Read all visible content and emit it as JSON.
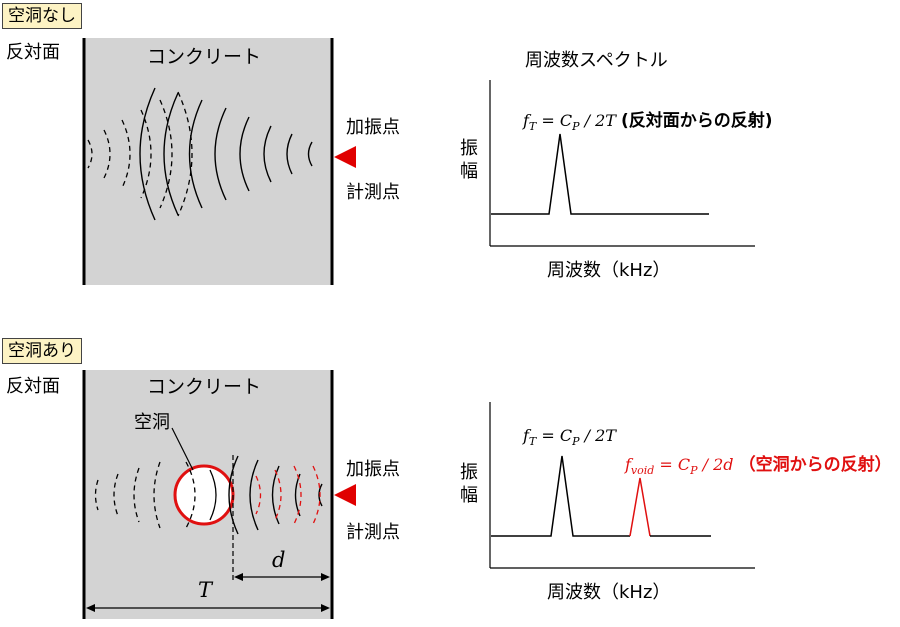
{
  "top": {
    "badge": "空洞なし",
    "far_face": "反対面",
    "concrete": "コンクリート",
    "excitation": "加振点",
    "measurement": "計測点",
    "spectrum_title": "周波数スペクトル",
    "amplitude_1": "振",
    "amplitude_2": "幅",
    "x_label": "周波数（kHz）",
    "eq_f": "f",
    "eq_f_sub": "T",
    "eq_mid": " = C",
    "eq_mid_sub": "P",
    "eq_tail": " / 2T ",
    "eq_note": "(反対面からの反射)"
  },
  "bottom": {
    "badge": "空洞あり",
    "far_face": "反対面",
    "concrete": "コンクリート",
    "void_label": "空洞",
    "excitation": "加振点",
    "measurement": "計測点",
    "amplitude_1": "振",
    "amplitude_2": "幅",
    "x_label": "周波数（kHz）",
    "eq1_f": "f",
    "eq1_f_sub": "T",
    "eq1_mid": " = C",
    "eq1_mid_sub": "P",
    "eq1_tail": " / 2T",
    "eq2_f": "f",
    "eq2_f_sub": "void",
    "eq2_mid": " = C",
    "eq2_mid_sub": "P",
    "eq2_tail": " / 2d ",
    "eq2_note": "（空洞からの反射）",
    "dim_d": "d",
    "dim_T": "T"
  },
  "colors": {
    "concrete": "#d3d3d3",
    "void_red": "#e01010",
    "arrow_red": "#e00000",
    "badge_bg": "#fdf3c4"
  }
}
